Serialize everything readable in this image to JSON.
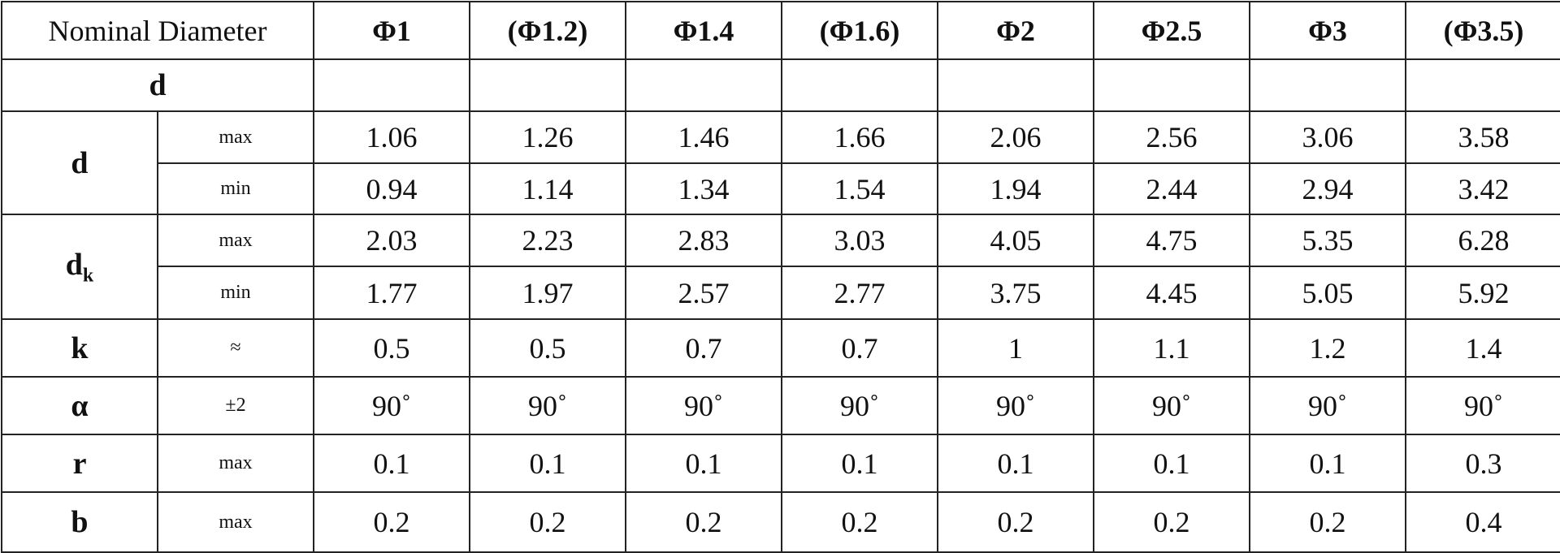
{
  "table": {
    "header": {
      "label": "Nominal Diameter",
      "columns": [
        "Φ1",
        "(Φ1.2)",
        "Φ1.4",
        "(Φ1.6)",
        "Φ2",
        "Φ2.5",
        "Φ3",
        "(Φ3.5)"
      ]
    },
    "blank_row": {
      "label": "d"
    },
    "groups": [
      {
        "symbol": "d",
        "rows": [
          {
            "tolerance": "max",
            "values": [
              1.06,
              1.26,
              1.46,
              1.66,
              2.06,
              2.56,
              3.06,
              3.58
            ]
          },
          {
            "tolerance": "min",
            "values": [
              0.94,
              1.14,
              1.34,
              1.54,
              1.94,
              2.44,
              2.94,
              3.42
            ]
          }
        ]
      },
      {
        "symbol": "d",
        "subscript": "k",
        "rows": [
          {
            "tolerance": "max",
            "values": [
              2.03,
              2.23,
              2.83,
              3.03,
              4.05,
              4.75,
              5.35,
              6.28
            ]
          },
          {
            "tolerance": "min",
            "values": [
              1.77,
              1.97,
              2.57,
              2.77,
              3.75,
              4.45,
              5.05,
              5.92
            ]
          }
        ]
      },
      {
        "symbol": "k",
        "rows": [
          {
            "tolerance": "≈",
            "values": [
              0.5,
              0.5,
              0.7,
              0.7,
              1,
              1.1,
              1.2,
              1.4
            ]
          }
        ]
      },
      {
        "symbol": "α",
        "rows": [
          {
            "tolerance": "±2",
            "values": [
              "90˚",
              "90˚",
              "90˚",
              "90˚",
              "90˚",
              "90˚",
              "90˚",
              "90˚"
            ]
          }
        ]
      },
      {
        "symbol": "r",
        "rows": [
          {
            "tolerance": "max",
            "values": [
              0.1,
              0.1,
              0.1,
              0.1,
              0.1,
              0.1,
              0.1,
              0.3
            ]
          }
        ]
      },
      {
        "symbol": "b",
        "rows": [
          {
            "tolerance": "max",
            "values": [
              0.2,
              0.2,
              0.2,
              0.2,
              0.2,
              0.2,
              0.2,
              0.4
            ]
          }
        ]
      }
    ]
  }
}
